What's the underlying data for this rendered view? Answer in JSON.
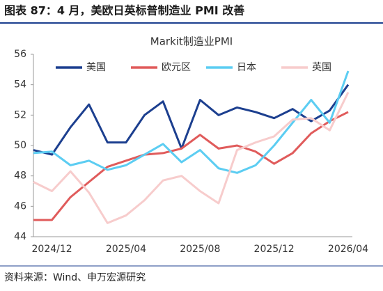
{
  "header": {
    "title": "图表 87：4 月，美欧日英标普制造业 PMI 改善"
  },
  "chart_data": {
    "type": "line",
    "title": "Markit制造业PMI",
    "categories": [
      null,
      "2024/12",
      null,
      null,
      null,
      "2025/04",
      null,
      null,
      null,
      "2025/08",
      null,
      null,
      null,
      "2025/12",
      null,
      null,
      null,
      "2026/04"
    ],
    "series": [
      {
        "name": "美国",
        "color": "#1c3f8f",
        "values": [
          49.7,
          49.4,
          51.2,
          52.7,
          50.2,
          50.2,
          52.0,
          52.9,
          49.8,
          53.0,
          52.0,
          52.5,
          52.2,
          51.8,
          52.4,
          51.6,
          52.3,
          54.0
        ]
      },
      {
        "name": "欧元区",
        "color": "#e05b5b",
        "values": [
          45.1,
          45.1,
          46.6,
          47.6,
          48.6,
          49.0,
          49.4,
          49.5,
          49.8,
          50.7,
          49.8,
          50.0,
          49.6,
          48.8,
          49.5,
          50.8,
          51.6,
          52.2
        ]
      },
      {
        "name": "日本",
        "color": "#5ccdf2",
        "values": [
          49.5,
          49.6,
          48.7,
          49.0,
          48.4,
          48.7,
          49.4,
          50.1,
          48.9,
          49.7,
          48.5,
          48.2,
          48.7,
          50.0,
          51.5,
          53.0,
          51.5,
          54.9
        ]
      },
      {
        "name": "英国",
        "color": "#f7cccc",
        "values": [
          47.6,
          47.0,
          48.3,
          46.9,
          44.9,
          45.4,
          46.4,
          47.7,
          48.0,
          47.0,
          46.2,
          49.7,
          50.2,
          50.6,
          51.7,
          51.8,
          51.0,
          53.5
        ]
      }
    ],
    "ylim": [
      44,
      56
    ],
    "yticks": [
      44,
      46,
      48,
      50,
      52,
      54,
      56
    ],
    "grid": false,
    "legend": "top"
  },
  "footer": {
    "source": "资料来源：Wind、申万宏源研究"
  }
}
